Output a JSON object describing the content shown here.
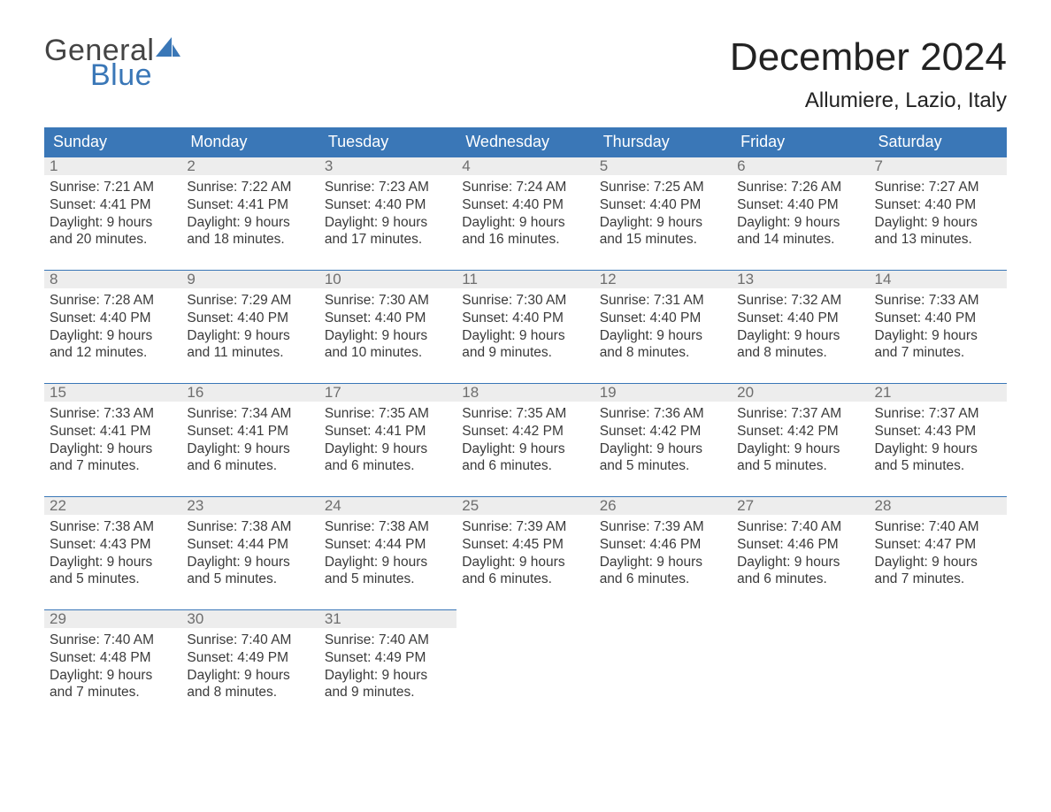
{
  "brand": {
    "word1": "General",
    "word2": "Blue"
  },
  "colors": {
    "header_bg": "#3a77b7",
    "header_text": "#ffffff",
    "daynum_bg": "#ededed",
    "daynum_border": "#3a77b7",
    "daynum_text": "#6e6e6e",
    "body_text": "#3a3a3a",
    "title_text": "#222222",
    "logo_blue": "#3a77b7",
    "logo_gray": "#444444",
    "page_bg": "#ffffff"
  },
  "typography": {
    "month_title_fontsize": 44,
    "location_fontsize": 24,
    "weekday_fontsize": 18,
    "daynum_fontsize": 17,
    "body_fontsize": 15.5,
    "logo_fontsize": 34
  },
  "title": "December 2024",
  "location": "Allumiere, Lazio, Italy",
  "weekdays": [
    "Sunday",
    "Monday",
    "Tuesday",
    "Wednesday",
    "Thursday",
    "Friday",
    "Saturday"
  ],
  "calendar": {
    "type": "table",
    "columns": 7,
    "start_weekday_index": 0,
    "weeks": [
      [
        {
          "n": "1",
          "sunrise": "Sunrise: 7:21 AM",
          "sunset": "Sunset: 4:41 PM",
          "dl1": "Daylight: 9 hours",
          "dl2": "and 20 minutes."
        },
        {
          "n": "2",
          "sunrise": "Sunrise: 7:22 AM",
          "sunset": "Sunset: 4:41 PM",
          "dl1": "Daylight: 9 hours",
          "dl2": "and 18 minutes."
        },
        {
          "n": "3",
          "sunrise": "Sunrise: 7:23 AM",
          "sunset": "Sunset: 4:40 PM",
          "dl1": "Daylight: 9 hours",
          "dl2": "and 17 minutes."
        },
        {
          "n": "4",
          "sunrise": "Sunrise: 7:24 AM",
          "sunset": "Sunset: 4:40 PM",
          "dl1": "Daylight: 9 hours",
          "dl2": "and 16 minutes."
        },
        {
          "n": "5",
          "sunrise": "Sunrise: 7:25 AM",
          "sunset": "Sunset: 4:40 PM",
          "dl1": "Daylight: 9 hours",
          "dl2": "and 15 minutes."
        },
        {
          "n": "6",
          "sunrise": "Sunrise: 7:26 AM",
          "sunset": "Sunset: 4:40 PM",
          "dl1": "Daylight: 9 hours",
          "dl2": "and 14 minutes."
        },
        {
          "n": "7",
          "sunrise": "Sunrise: 7:27 AM",
          "sunset": "Sunset: 4:40 PM",
          "dl1": "Daylight: 9 hours",
          "dl2": "and 13 minutes."
        }
      ],
      [
        {
          "n": "8",
          "sunrise": "Sunrise: 7:28 AM",
          "sunset": "Sunset: 4:40 PM",
          "dl1": "Daylight: 9 hours",
          "dl2": "and 12 minutes."
        },
        {
          "n": "9",
          "sunrise": "Sunrise: 7:29 AM",
          "sunset": "Sunset: 4:40 PM",
          "dl1": "Daylight: 9 hours",
          "dl2": "and 11 minutes."
        },
        {
          "n": "10",
          "sunrise": "Sunrise: 7:30 AM",
          "sunset": "Sunset: 4:40 PM",
          "dl1": "Daylight: 9 hours",
          "dl2": "and 10 minutes."
        },
        {
          "n": "11",
          "sunrise": "Sunrise: 7:30 AM",
          "sunset": "Sunset: 4:40 PM",
          "dl1": "Daylight: 9 hours",
          "dl2": "and 9 minutes."
        },
        {
          "n": "12",
          "sunrise": "Sunrise: 7:31 AM",
          "sunset": "Sunset: 4:40 PM",
          "dl1": "Daylight: 9 hours",
          "dl2": "and 8 minutes."
        },
        {
          "n": "13",
          "sunrise": "Sunrise: 7:32 AM",
          "sunset": "Sunset: 4:40 PM",
          "dl1": "Daylight: 9 hours",
          "dl2": "and 8 minutes."
        },
        {
          "n": "14",
          "sunrise": "Sunrise: 7:33 AM",
          "sunset": "Sunset: 4:40 PM",
          "dl1": "Daylight: 9 hours",
          "dl2": "and 7 minutes."
        }
      ],
      [
        {
          "n": "15",
          "sunrise": "Sunrise: 7:33 AM",
          "sunset": "Sunset: 4:41 PM",
          "dl1": "Daylight: 9 hours",
          "dl2": "and 7 minutes."
        },
        {
          "n": "16",
          "sunrise": "Sunrise: 7:34 AM",
          "sunset": "Sunset: 4:41 PM",
          "dl1": "Daylight: 9 hours",
          "dl2": "and 6 minutes."
        },
        {
          "n": "17",
          "sunrise": "Sunrise: 7:35 AM",
          "sunset": "Sunset: 4:41 PM",
          "dl1": "Daylight: 9 hours",
          "dl2": "and 6 minutes."
        },
        {
          "n": "18",
          "sunrise": "Sunrise: 7:35 AM",
          "sunset": "Sunset: 4:42 PM",
          "dl1": "Daylight: 9 hours",
          "dl2": "and 6 minutes."
        },
        {
          "n": "19",
          "sunrise": "Sunrise: 7:36 AM",
          "sunset": "Sunset: 4:42 PM",
          "dl1": "Daylight: 9 hours",
          "dl2": "and 5 minutes."
        },
        {
          "n": "20",
          "sunrise": "Sunrise: 7:37 AM",
          "sunset": "Sunset: 4:42 PM",
          "dl1": "Daylight: 9 hours",
          "dl2": "and 5 minutes."
        },
        {
          "n": "21",
          "sunrise": "Sunrise: 7:37 AM",
          "sunset": "Sunset: 4:43 PM",
          "dl1": "Daylight: 9 hours",
          "dl2": "and 5 minutes."
        }
      ],
      [
        {
          "n": "22",
          "sunrise": "Sunrise: 7:38 AM",
          "sunset": "Sunset: 4:43 PM",
          "dl1": "Daylight: 9 hours",
          "dl2": "and 5 minutes."
        },
        {
          "n": "23",
          "sunrise": "Sunrise: 7:38 AM",
          "sunset": "Sunset: 4:44 PM",
          "dl1": "Daylight: 9 hours",
          "dl2": "and 5 minutes."
        },
        {
          "n": "24",
          "sunrise": "Sunrise: 7:38 AM",
          "sunset": "Sunset: 4:44 PM",
          "dl1": "Daylight: 9 hours",
          "dl2": "and 5 minutes."
        },
        {
          "n": "25",
          "sunrise": "Sunrise: 7:39 AM",
          "sunset": "Sunset: 4:45 PM",
          "dl1": "Daylight: 9 hours",
          "dl2": "and 6 minutes."
        },
        {
          "n": "26",
          "sunrise": "Sunrise: 7:39 AM",
          "sunset": "Sunset: 4:46 PM",
          "dl1": "Daylight: 9 hours",
          "dl2": "and 6 minutes."
        },
        {
          "n": "27",
          "sunrise": "Sunrise: 7:40 AM",
          "sunset": "Sunset: 4:46 PM",
          "dl1": "Daylight: 9 hours",
          "dl2": "and 6 minutes."
        },
        {
          "n": "28",
          "sunrise": "Sunrise: 7:40 AM",
          "sunset": "Sunset: 4:47 PM",
          "dl1": "Daylight: 9 hours",
          "dl2": "and 7 minutes."
        }
      ],
      [
        {
          "n": "29",
          "sunrise": "Sunrise: 7:40 AM",
          "sunset": "Sunset: 4:48 PM",
          "dl1": "Daylight: 9 hours",
          "dl2": "and 7 minutes."
        },
        {
          "n": "30",
          "sunrise": "Sunrise: 7:40 AM",
          "sunset": "Sunset: 4:49 PM",
          "dl1": "Daylight: 9 hours",
          "dl2": "and 8 minutes."
        },
        {
          "n": "31",
          "sunrise": "Sunrise: 7:40 AM",
          "sunset": "Sunset: 4:49 PM",
          "dl1": "Daylight: 9 hours",
          "dl2": "and 9 minutes."
        },
        null,
        null,
        null,
        null
      ]
    ]
  }
}
